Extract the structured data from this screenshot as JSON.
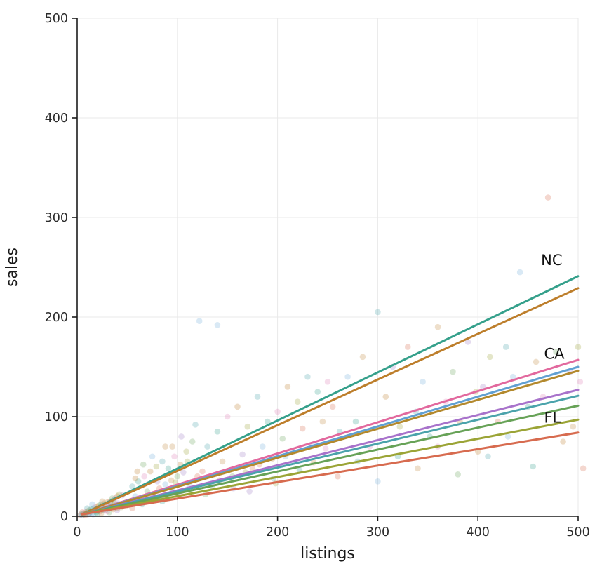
{
  "chart_data": {
    "type": "scatter",
    "title": "",
    "xlabel": "listings",
    "ylabel": "sales",
    "xlim": [
      0,
      500
    ],
    "ylim": [
      0,
      500
    ],
    "xticks": [
      0,
      100,
      200,
      300,
      400,
      500
    ],
    "yticks": [
      0,
      100,
      200,
      300,
      400,
      500
    ],
    "grid": true,
    "grid_color": "#e9e9e9",
    "axis_color": "#1c1c1c",
    "tick_label_color": "#2b2b2b",
    "point_opacity": 0.27,
    "point_radius": 4.3,
    "palette": [
      "#d76b4f",
      "#74aeda",
      "#67a257",
      "#c08a3e",
      "#a07cc5",
      "#4ba3ab",
      "#de7fb4",
      "#9ba436",
      "#35a08b",
      "#bd7e2b"
    ],
    "regression_lines": [
      {
        "label": "NC",
        "color": "#35a08b",
        "x": [
          5,
          500
        ],
        "y": [
          2,
          241
        ]
      },
      {
        "label": "",
        "color": "#bd7e2b",
        "x": [
          5,
          500
        ],
        "y": [
          2,
          229
        ]
      },
      {
        "label": "CA",
        "color": "#e2699e",
        "x": [
          5,
          500
        ],
        "y": [
          2,
          157
        ]
      },
      {
        "label": "",
        "color": "#61a0d2",
        "x": [
          5,
          500
        ],
        "y": [
          2,
          150
        ]
      },
      {
        "label": "",
        "color": "#b3892d",
        "x": [
          5,
          500
        ],
        "y": [
          2,
          146
        ]
      },
      {
        "label": "",
        "color": "#a873cb",
        "x": [
          5,
          500
        ],
        "y": [
          2,
          127
        ]
      },
      {
        "label": "",
        "color": "#4ba3ab",
        "x": [
          5,
          500
        ],
        "y": [
          2,
          121
        ]
      },
      {
        "label": "",
        "color": "#67a257",
        "x": [
          5,
          500
        ],
        "y": [
          2,
          111
        ]
      },
      {
        "label": "FL",
        "color": "#9ba436",
        "x": [
          5,
          500
        ],
        "y": [
          2,
          97
        ]
      },
      {
        "label": "",
        "color": "#d76b4f",
        "x": [
          5,
          500
        ],
        "y": [
          2,
          84
        ]
      }
    ],
    "annotations": [
      {
        "text": "NC",
        "x": 463,
        "y": 252
      },
      {
        "text": "CA",
        "x": 466,
        "y": 158
      },
      {
        "text": "FL",
        "x": 466,
        "y": 94
      }
    ],
    "points": [
      [
        3,
        1,
        0
      ],
      [
        4,
        2,
        5
      ],
      [
        5,
        1,
        1
      ],
      [
        6,
        3,
        8
      ],
      [
        7,
        2,
        3
      ],
      [
        8,
        4,
        6
      ],
      [
        9,
        3,
        2
      ],
      [
        10,
        5,
        9
      ],
      [
        11,
        2,
        4
      ],
      [
        12,
        6,
        7
      ],
      [
        13,
        4,
        0
      ],
      [
        14,
        7,
        5
      ],
      [
        15,
        3,
        1
      ],
      [
        16,
        8,
        8
      ],
      [
        17,
        5,
        3
      ],
      [
        18,
        9,
        6
      ],
      [
        19,
        4,
        2
      ],
      [
        20,
        10,
        9
      ],
      [
        21,
        6,
        4
      ],
      [
        22,
        11,
        7
      ],
      [
        23,
        5,
        0
      ],
      [
        24,
        12,
        5
      ],
      [
        25,
        8,
        1
      ],
      [
        26,
        6,
        8
      ],
      [
        27,
        13,
        3
      ],
      [
        28,
        9,
        6
      ],
      [
        29,
        7,
        2
      ],
      [
        30,
        14,
        9
      ],
      [
        31,
        10,
        4
      ],
      [
        32,
        8,
        7
      ],
      [
        33,
        15,
        0
      ],
      [
        34,
        11,
        5
      ],
      [
        35,
        9,
        1
      ],
      [
        36,
        16,
        8
      ],
      [
        37,
        12,
        3
      ],
      [
        38,
        18,
        6
      ],
      [
        39,
        10,
        2
      ],
      [
        40,
        20,
        9
      ],
      [
        41,
        13,
        4
      ],
      [
        42,
        22,
        7
      ],
      [
        8,
        1,
        0
      ],
      [
        12,
        3,
        5
      ],
      [
        16,
        2,
        1
      ],
      [
        20,
        5,
        8
      ],
      [
        24,
        3,
        3
      ],
      [
        28,
        6,
        6
      ],
      [
        32,
        4,
        2
      ],
      [
        36,
        7,
        9
      ],
      [
        40,
        6,
        4
      ],
      [
        44,
        9,
        7
      ],
      [
        5,
        4,
        0
      ],
      [
        10,
        8,
        5
      ],
      [
        15,
        12,
        1
      ],
      [
        20,
        3,
        8
      ],
      [
        25,
        15,
        3
      ],
      [
        30,
        5,
        6
      ],
      [
        35,
        18,
        2
      ],
      [
        40,
        8,
        9
      ],
      [
        45,
        21,
        4
      ],
      [
        50,
        11,
        7
      ],
      [
        52,
        14,
        0
      ],
      [
        55,
        30,
        5
      ],
      [
        58,
        20,
        1
      ],
      [
        61,
        35,
        8
      ],
      [
        64,
        18,
        3
      ],
      [
        67,
        40,
        6
      ],
      [
        70,
        25,
        2
      ],
      [
        73,
        45,
        9
      ],
      [
        76,
        22,
        4
      ],
      [
        79,
        50,
        7
      ],
      [
        82,
        28,
        0
      ],
      [
        85,
        55,
        5
      ],
      [
        88,
        32,
        1
      ],
      [
        91,
        48,
        8
      ],
      [
        94,
        36,
        3
      ],
      [
        97,
        60,
        6
      ],
      [
        100,
        40,
        2
      ],
      [
        103,
        52,
        9
      ],
      [
        106,
        44,
        4
      ],
      [
        109,
        65,
        7
      ],
      [
        55,
        8,
        0
      ],
      [
        65,
        12,
        5
      ],
      [
        75,
        60,
        1
      ],
      [
        85,
        15,
        8
      ],
      [
        95,
        70,
        3
      ],
      [
        105,
        20,
        6
      ],
      [
        115,
        75,
        2
      ],
      [
        60,
        45,
        9
      ],
      [
        80,
        35,
        4
      ],
      [
        110,
        55,
        7
      ],
      [
        120,
        40,
        0
      ],
      [
        118,
        92,
        5
      ],
      [
        112,
        30,
        1
      ],
      [
        95,
        25,
        8
      ],
      [
        88,
        70,
        3
      ],
      [
        72,
        16,
        6
      ],
      [
        66,
        52,
        2
      ],
      [
        58,
        38,
        9
      ],
      [
        104,
        80,
        4
      ],
      [
        98,
        34,
        7
      ],
      [
        125,
        45,
        0
      ],
      [
        130,
        70,
        5
      ],
      [
        135,
        30,
        1
      ],
      [
        140,
        85,
        8
      ],
      [
        145,
        55,
        3
      ],
      [
        150,
        100,
        6
      ],
      [
        155,
        40,
        2
      ],
      [
        160,
        110,
        9
      ],
      [
        165,
        62,
        4
      ],
      [
        170,
        90,
        7
      ],
      [
        175,
        48,
        0
      ],
      [
        180,
        120,
        5
      ],
      [
        185,
        70,
        1
      ],
      [
        190,
        95,
        8
      ],
      [
        195,
        58,
        3
      ],
      [
        200,
        105,
        6
      ],
      [
        205,
        78,
        2
      ],
      [
        210,
        130,
        9
      ],
      [
        215,
        66,
        4
      ],
      [
        220,
        115,
        7
      ],
      [
        225,
        88,
        0
      ],
      [
        230,
        140,
        5
      ],
      [
        235,
        72,
        1
      ],
      [
        240,
        125,
        8
      ],
      [
        245,
        95,
        3
      ],
      [
        250,
        135,
        6
      ],
      [
        128,
        22,
        2
      ],
      [
        142,
        36,
        9
      ],
      [
        156,
        28,
        4
      ],
      [
        168,
        44,
        7
      ],
      [
        182,
        52,
        0
      ],
      [
        196,
        38,
        5
      ],
      [
        208,
        60,
        1
      ],
      [
        222,
        46,
        8
      ],
      [
        236,
        54,
        3
      ],
      [
        248,
        68,
        6
      ],
      [
        122,
        196,
        1
      ],
      [
        140,
        192,
        1
      ],
      [
        172,
        25,
        4
      ],
      [
        198,
        33,
        7
      ],
      [
        255,
        110,
        0
      ],
      [
        262,
        85,
        5
      ],
      [
        270,
        140,
        1
      ],
      [
        278,
        95,
        8
      ],
      [
        285,
        160,
        3
      ],
      [
        292,
        70,
        6
      ],
      [
        300,
        205,
        5
      ],
      [
        308,
        120,
        9
      ],
      [
        315,
        150,
        4
      ],
      [
        322,
        90,
        7
      ],
      [
        330,
        170,
        0
      ],
      [
        338,
        105,
        5
      ],
      [
        345,
        135,
        1
      ],
      [
        352,
        80,
        8
      ],
      [
        360,
        190,
        3
      ],
      [
        368,
        115,
        6
      ],
      [
        375,
        145,
        2
      ],
      [
        382,
        95,
        9
      ],
      [
        390,
        175,
        4
      ],
      [
        398,
        125,
        7
      ],
      [
        260,
        40,
        0
      ],
      [
        280,
        55,
        5
      ],
      [
        300,
        35,
        1
      ],
      [
        320,
        60,
        8
      ],
      [
        340,
        48,
        3
      ],
      [
        360,
        70,
        6
      ],
      [
        380,
        42,
        2
      ],
      [
        400,
        65,
        9
      ],
      [
        405,
        130,
        4
      ],
      [
        412,
        160,
        7
      ],
      [
        420,
        95,
        0
      ],
      [
        428,
        170,
        5
      ],
      [
        435,
        140,
        1
      ],
      [
        442,
        245,
        1
      ],
      [
        450,
        110,
        8
      ],
      [
        458,
        155,
        3
      ],
      [
        465,
        120,
        6
      ],
      [
        470,
        320,
        0
      ],
      [
        478,
        165,
        2
      ],
      [
        485,
        75,
        9
      ],
      [
        492,
        145,
        4
      ],
      [
        500,
        170,
        7
      ],
      [
        505,
        48,
        0
      ],
      [
        410,
        60,
        5
      ],
      [
        430,
        80,
        1
      ],
      [
        455,
        50,
        8
      ],
      [
        495,
        90,
        3
      ],
      [
        502,
        135,
        6
      ]
    ]
  }
}
